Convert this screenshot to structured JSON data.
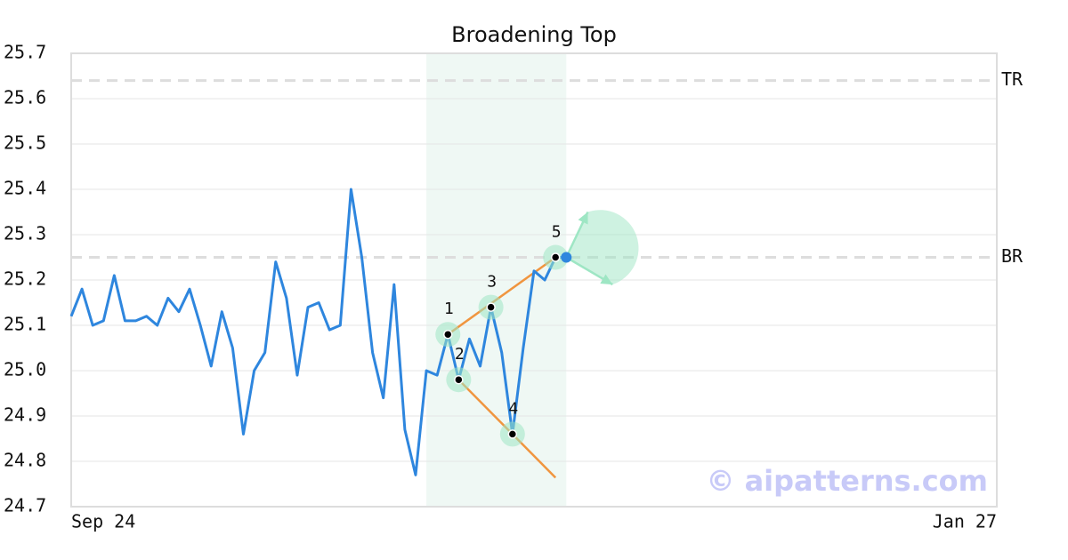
{
  "chart_data": {
    "type": "line",
    "title": "Broadening Top",
    "x": [
      0,
      1,
      2,
      3,
      4,
      5,
      6,
      7,
      8,
      9,
      10,
      11,
      12,
      13,
      14,
      15,
      16,
      17,
      18,
      19,
      20,
      21,
      22,
      23,
      24,
      25,
      26,
      27,
      28,
      29,
      30,
      31,
      32,
      33,
      34,
      35,
      36,
      37,
      38,
      39,
      40,
      41,
      42,
      43,
      44,
      45,
      46
    ],
    "series": [
      {
        "name": "Price",
        "color": "#2e86de",
        "values": [
          25.12,
          25.18,
          25.1,
          25.11,
          25.21,
          25.11,
          25.11,
          25.12,
          25.1,
          25.16,
          25.13,
          25.18,
          25.1,
          25.01,
          25.13,
          25.05,
          24.86,
          25.0,
          25.04,
          25.24,
          25.16,
          24.99,
          25.14,
          25.15,
          25.09,
          25.1,
          25.4,
          25.25,
          25.04,
          24.94,
          25.19,
          24.87,
          24.77,
          25.0,
          24.99,
          25.08,
          24.98,
          25.07,
          25.01,
          25.14,
          25.04,
          24.86,
          25.05,
          25.22,
          25.2,
          25.25,
          25.25
        ]
      }
    ],
    "xlim": [
      0,
      86
    ],
    "xticks": [
      {
        "value": 0,
        "label": "Sep 24"
      },
      {
        "value": 86,
        "label": "Jan 27"
      }
    ],
    "ylim": [
      24.7,
      25.7
    ],
    "yticks": [
      24.7,
      24.8,
      24.9,
      {
        "value": 25,
        "label": "25.0"
      },
      25.1,
      25.2,
      25.3,
      25.4,
      25.5,
      25.6,
      25.7
    ],
    "grid": true,
    "highlight": [
      33,
      46
    ],
    "levels": [
      {
        "name": "TR",
        "value": 25.64
      },
      {
        "name": "BR",
        "value": 25.25
      }
    ],
    "trendlines": [
      {
        "x": [
          35,
          45
        ],
        "y": [
          25.08,
          25.25
        ]
      },
      {
        "x": [
          36,
          45
        ],
        "y": [
          24.98,
          24.764
        ]
      }
    ],
    "pivots": [
      {
        "label": "1",
        "x": 35,
        "y": 25.08
      },
      {
        "label": "2",
        "x": 36,
        "y": 24.98
      },
      {
        "label": "3",
        "x": 39,
        "y": 25.14
      },
      {
        "label": "4",
        "x": 41,
        "y": 24.86
      },
      {
        "label": "5",
        "x": 45,
        "y": 25.25
      }
    ],
    "arrows": [
      {
        "x": 48,
        "y": 25.35
      },
      {
        "x": 50.3,
        "y": 25.19
      }
    ],
    "watermark": "© aipatterns.com"
  }
}
